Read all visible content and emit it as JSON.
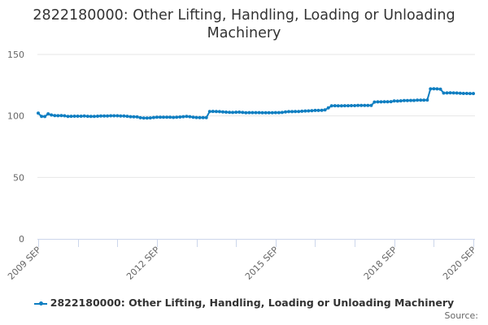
{
  "chart_data": {
    "type": "line",
    "title": "2822180000: Other Lifting, Handling, Loading or Unloading Machinery",
    "xlabel": "",
    "ylabel": "",
    "ylim": [
      0,
      150
    ],
    "yticks": [
      0,
      50,
      100,
      150
    ],
    "grid": true,
    "legend_position": "bottom",
    "x_tick_labels": [
      "2009 SEP",
      "2012 SEP",
      "2015 SEP",
      "2018 SEP",
      "2020 SEP"
    ],
    "x_start": "2009 SEP",
    "x_end": "2020 SEP",
    "frequency": "monthly",
    "series": [
      {
        "name": "2822180000: Other Lifting, Handling, Loading or Unloading Machinery",
        "color": "#0f7ec1",
        "values": [
          102.2,
          99.6,
          99.5,
          101.7,
          100.8,
          100.3,
          100.2,
          100.3,
          100.1,
          99.6,
          99.7,
          99.8,
          99.8,
          99.8,
          99.9,
          99.7,
          99.6,
          99.6,
          99.8,
          99.9,
          100.0,
          100.0,
          100.1,
          100.1,
          100.1,
          100.0,
          100.0,
          99.7,
          99.4,
          99.3,
          99.2,
          98.5,
          98.3,
          98.3,
          98.4,
          98.7,
          98.9,
          98.9,
          99.0,
          98.9,
          98.9,
          98.8,
          98.9,
          99.1,
          99.4,
          99.6,
          99.4,
          99.0,
          98.7,
          98.6,
          98.6,
          98.6,
          103.6,
          103.7,
          103.6,
          103.5,
          103.3,
          103.1,
          102.9,
          102.8,
          103.0,
          103.1,
          102.8,
          102.6,
          102.7,
          102.7,
          102.7,
          102.7,
          102.6,
          102.6,
          102.6,
          102.6,
          102.7,
          102.7,
          102.8,
          103.3,
          103.5,
          103.5,
          103.6,
          103.6,
          103.8,
          104.0,
          104.1,
          104.3,
          104.5,
          104.5,
          104.6,
          104.9,
          106.5,
          108.2,
          108.3,
          108.2,
          108.2,
          108.3,
          108.3,
          108.4,
          108.4,
          108.5,
          108.5,
          108.5,
          108.6,
          108.5,
          111.3,
          111.4,
          111.4,
          111.5,
          111.5,
          111.6,
          112.2,
          112.1,
          112.3,
          112.5,
          112.5,
          112.6,
          112.6,
          112.8,
          112.8,
          112.8,
          112.9,
          122.0,
          122.1,
          122.0,
          121.8,
          118.6,
          118.7,
          118.8,
          118.7,
          118.6,
          118.5,
          118.3,
          118.3,
          118.2,
          118.2
        ]
      }
    ]
  },
  "header": {
    "title": "2822180000: Other Lifting, Handling, Loading or Unloading Machinery"
  },
  "legend": {
    "label": "2822180000: Other Lifting, Handling, Loading or Unloading Machinery"
  },
  "footer": {
    "source_label": "Source:"
  }
}
